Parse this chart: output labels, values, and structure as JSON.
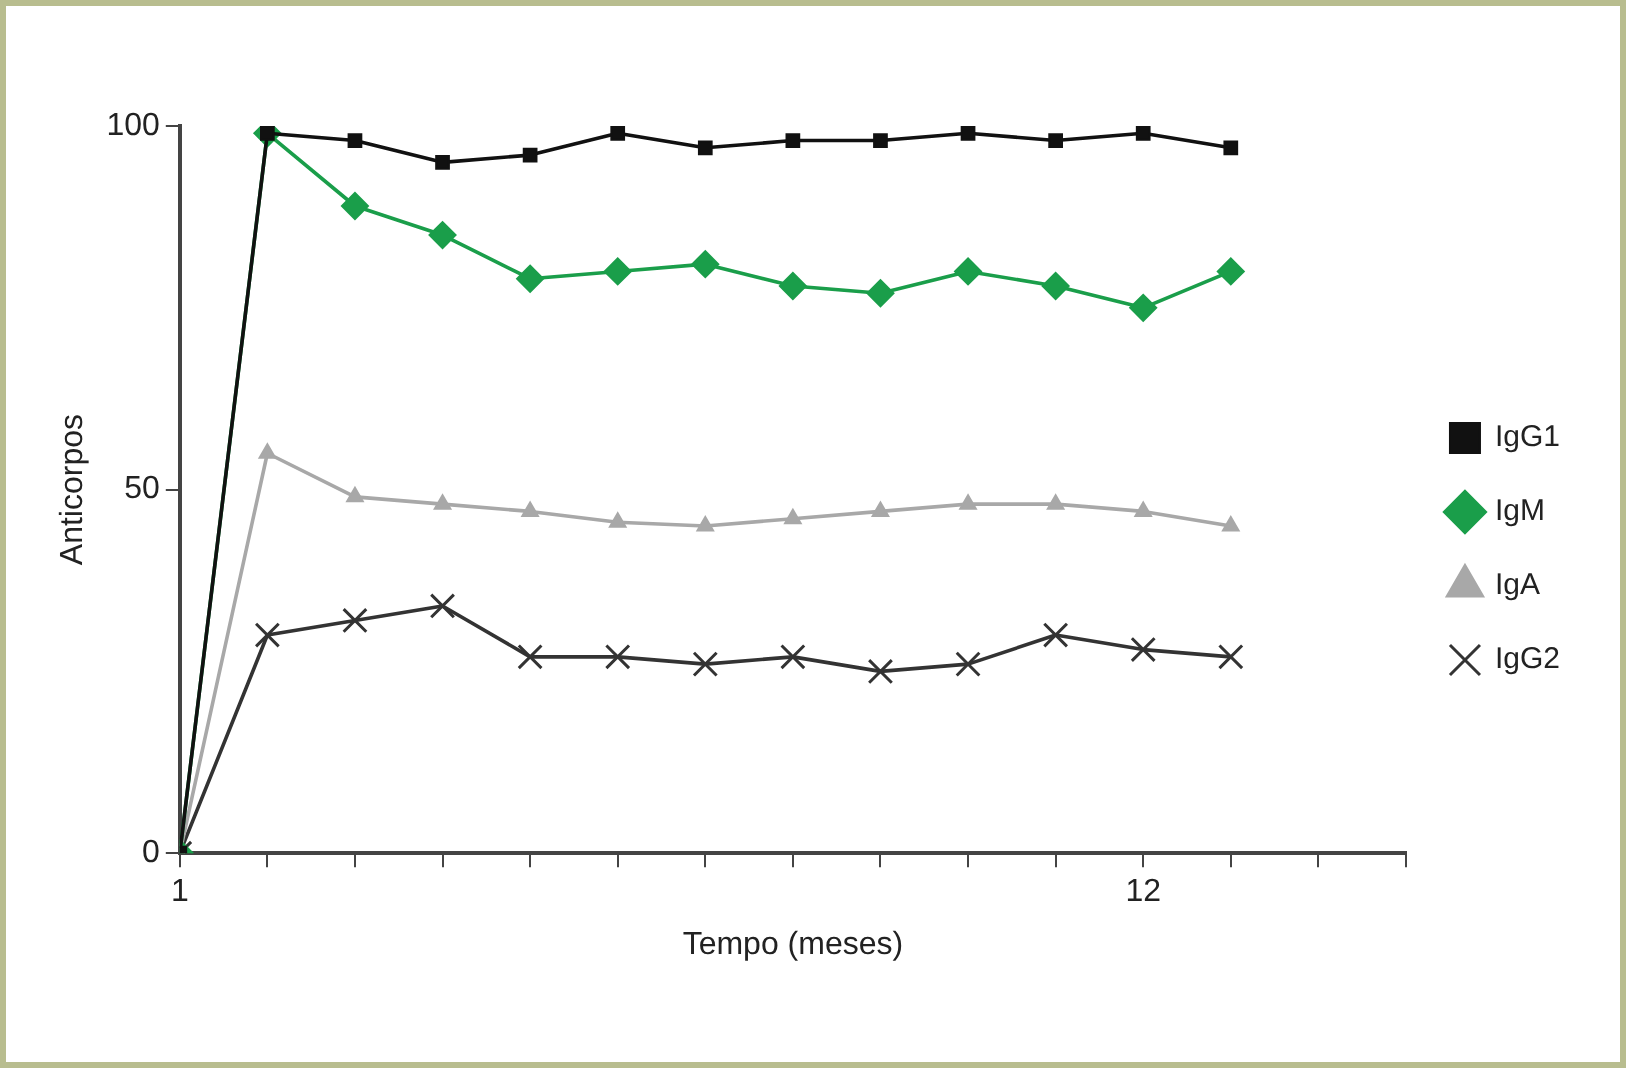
{
  "chart_data": {
    "type": "line",
    "xlabel": "Tempo (meses)",
    "ylabel": "Anticorpos",
    "xlim": [
      1,
      15
    ],
    "xticks": [
      1,
      {
        "value": 2,
        "label": null
      },
      {
        "value": 3,
        "label": null
      },
      {
        "value": 4,
        "label": null
      },
      {
        "value": 5,
        "label": null
      },
      {
        "value": 6,
        "label": null
      },
      {
        "value": 7,
        "label": null
      },
      {
        "value": 8,
        "label": null
      },
      {
        "value": 9,
        "label": null
      },
      {
        "value": 10,
        "label": null
      },
      {
        "value": 11,
        "label": null
      },
      12,
      {
        "value": 13,
        "label": null
      },
      {
        "value": 14,
        "label": null
      },
      {
        "value": 15,
        "label": null
      }
    ],
    "ylim": [
      0,
      100
    ],
    "yticks": [
      0,
      50,
      100
    ],
    "grid": false,
    "legend": "right",
    "line_style": "solid",
    "x": [
      1,
      2,
      3,
      4,
      5,
      6,
      7,
      8,
      9,
      10,
      11,
      12,
      13
    ],
    "series": [
      {
        "name": "IgG1",
        "color": "#111111",
        "marker": "square",
        "values": [
          0,
          99,
          98,
          95,
          96,
          99,
          97,
          98,
          98,
          99,
          98,
          99,
          97
        ]
      },
      {
        "name": "IgM",
        "color": "#1a9e4a",
        "marker": "diamond",
        "values": [
          0,
          99,
          89,
          85,
          79,
          80,
          81,
          78,
          77,
          80,
          78,
          75,
          80
        ]
      },
      {
        "name": "IgA",
        "color": "#a8a8a8",
        "marker": "triangle",
        "values": [
          0,
          55,
          49,
          48,
          47,
          45.5,
          45,
          46,
          47,
          48,
          48,
          47,
          45
        ]
      },
      {
        "name": "IgG2",
        "color": "#333333",
        "marker": "cross",
        "values": [
          0,
          30,
          32,
          34,
          27,
          27,
          26,
          27,
          25,
          26,
          30,
          28,
          27
        ]
      }
    ]
  }
}
